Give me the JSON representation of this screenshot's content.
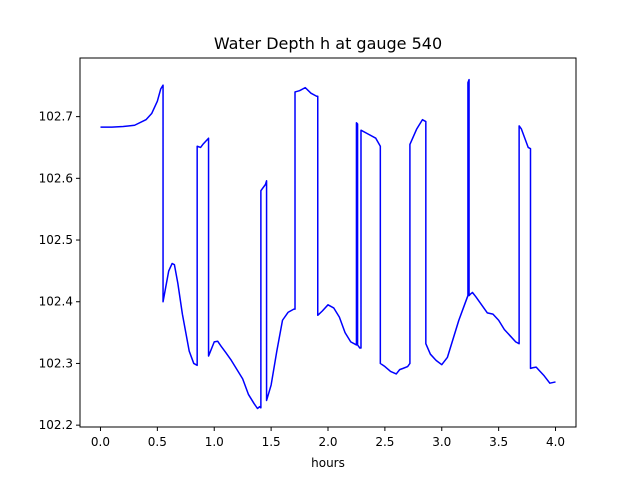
{
  "chart_data": {
    "type": "line",
    "title": "Water Depth h at gauge 540",
    "xlabel": "hours",
    "ylabel": "",
    "xlim": [
      -0.18,
      4.18
    ],
    "ylim": [
      102.197,
      102.795
    ],
    "xticks": [
      0.0,
      0.5,
      1.0,
      1.5,
      2.0,
      2.5,
      3.0,
      3.5,
      4.0
    ],
    "xtick_labels": [
      "0.0",
      "0.5",
      "1.0",
      "1.5",
      "2.0",
      "2.5",
      "3.0",
      "3.5",
      "4.0"
    ],
    "yticks": [
      102.2,
      102.3,
      102.4,
      102.5,
      102.6,
      102.7
    ],
    "ytick_labels": [
      "102.2",
      "102.3",
      "102.4",
      "102.5",
      "102.6",
      "102.7"
    ],
    "grid": false,
    "series_color": "#0000ff",
    "series": [
      {
        "x": [
          0.0,
          0.1,
          0.2,
          0.3,
          0.4,
          0.45,
          0.5,
          0.53,
          0.55,
          0.55,
          0.57,
          0.6,
          0.63,
          0.65,
          0.68,
          0.72,
          0.75,
          0.78,
          0.82,
          0.85,
          0.85,
          0.88,
          0.9,
          0.95,
          0.95,
          1.0,
          1.03,
          1.06,
          1.1,
          1.15,
          1.2,
          1.25,
          1.3,
          1.35,
          1.38,
          1.4,
          1.41,
          1.41,
          1.45,
          1.46,
          1.46,
          1.5,
          1.55,
          1.6,
          1.65,
          1.7,
          1.71,
          1.71,
          1.75,
          1.8,
          1.85,
          1.9,
          1.91,
          1.91,
          1.95,
          2.0,
          2.05,
          2.1,
          2.15,
          2.2,
          2.25,
          2.25,
          2.26,
          2.26,
          2.28,
          2.29,
          2.29,
          2.35,
          2.42,
          2.46,
          2.46,
          2.5,
          2.55,
          2.6,
          2.63,
          2.66,
          2.7,
          2.72,
          2.72,
          2.78,
          2.83,
          2.86,
          2.86,
          2.9,
          2.95,
          3.0,
          3.05,
          3.1,
          3.15,
          3.2,
          3.23,
          3.23,
          3.24,
          3.24,
          3.25,
          3.27,
          3.3,
          3.35,
          3.4,
          3.45,
          3.5,
          3.55,
          3.6,
          3.65,
          3.68,
          3.68,
          3.7,
          3.73,
          3.76,
          3.78,
          3.78,
          3.8,
          3.83,
          3.86,
          3.9,
          3.95,
          4.0
        ],
        "y": [
          102.683,
          102.683,
          102.684,
          102.686,
          102.695,
          102.705,
          102.725,
          102.745,
          102.751,
          102.4,
          102.42,
          102.45,
          102.462,
          102.46,
          102.43,
          102.38,
          102.35,
          102.32,
          102.3,
          102.297,
          102.652,
          102.65,
          102.655,
          102.665,
          102.312,
          102.335,
          102.336,
          102.328,
          102.318,
          102.305,
          102.29,
          102.275,
          102.25,
          102.235,
          102.227,
          102.23,
          102.228,
          102.58,
          102.59,
          102.596,
          102.24,
          102.265,
          102.32,
          102.37,
          102.383,
          102.388,
          102.388,
          102.74,
          102.742,
          102.747,
          102.738,
          102.733,
          102.733,
          102.378,
          102.385,
          102.395,
          102.39,
          102.375,
          102.35,
          102.335,
          102.33,
          102.69,
          102.688,
          102.33,
          102.325,
          102.325,
          102.678,
          102.672,
          102.665,
          102.652,
          102.3,
          102.295,
          102.287,
          102.283,
          102.29,
          102.292,
          102.295,
          102.3,
          102.655,
          102.68,
          102.695,
          102.692,
          102.332,
          102.315,
          102.305,
          102.298,
          102.31,
          102.34,
          102.37,
          102.395,
          102.41,
          102.755,
          102.76,
          102.41,
          102.412,
          102.415,
          102.408,
          102.395,
          102.382,
          102.38,
          102.37,
          102.355,
          102.345,
          102.335,
          102.332,
          102.685,
          102.68,
          102.665,
          102.65,
          102.648,
          102.292,
          102.293,
          102.294,
          102.288,
          102.28,
          102.268,
          102.27
        ]
      }
    ]
  }
}
